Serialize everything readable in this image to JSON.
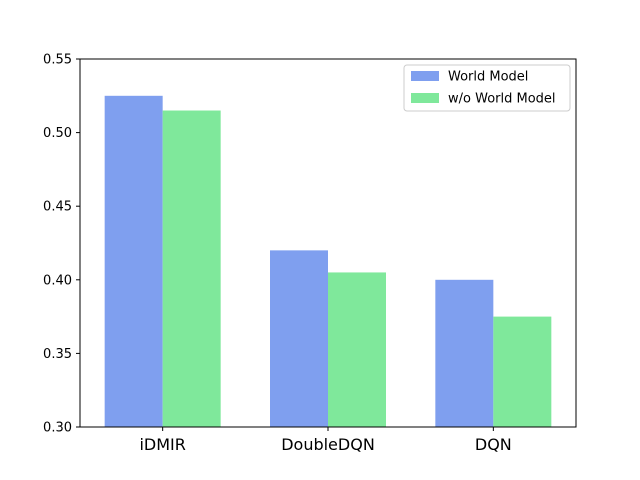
{
  "chart_data": {
    "type": "bar",
    "categories": [
      "iDMIR",
      "DoubleDQN",
      "DQN"
    ],
    "series": [
      {
        "name": "World Model",
        "values": [
          0.525,
          0.42,
          0.4
        ],
        "color": "#7f9fef"
      },
      {
        "name": "w/o World Model",
        "values": [
          0.515,
          0.405,
          0.375
        ],
        "color": "#7fe89b"
      }
    ],
    "ylim": [
      0.3,
      0.55
    ],
    "yticks": [
      "0.30",
      "0.35",
      "0.40",
      "0.45",
      "0.50",
      "0.55"
    ],
    "title": "",
    "xlabel": "",
    "ylabel": "",
    "grid": false,
    "legend_position": "top-right"
  }
}
